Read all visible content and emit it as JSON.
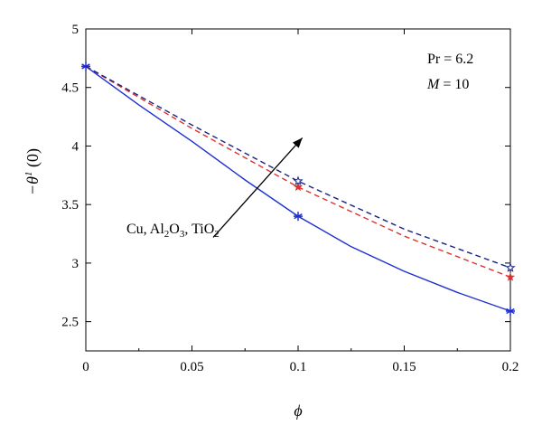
{
  "chart_data": {
    "type": "line",
    "xlabel": "ϕ",
    "ylabel": "−θ1(0)",
    "ylabel_parts": {
      "base": "−θ",
      "sup": "1",
      "tail": " (0)"
    },
    "xlim": [
      0,
      0.2
    ],
    "ylim": [
      2.25,
      5
    ],
    "x_ticks": [
      0,
      0.05,
      0.1,
      0.15,
      0.2
    ],
    "x_tick_labels": [
      "0",
      "0.05",
      "0.1",
      "0.15",
      "0.2"
    ],
    "y_ticks": [
      2.5,
      3,
      3.5,
      4,
      4.5,
      5
    ],
    "y_tick_labels": [
      "2.5",
      "3",
      "3.5",
      "4",
      "4.5",
      "5"
    ],
    "grid": false,
    "annotations": {
      "params": [
        {
          "var": "Pr",
          "value": "6.2",
          "italic": false
        },
        {
          "var": "M",
          "value": "10",
          "italic": true
        }
      ],
      "arrow_label_parts": [
        "Cu, Al",
        "2",
        "O",
        "3",
        ", TiO",
        "2"
      ],
      "arrow": {
        "from": [
          0.06,
          3.22
        ],
        "to": [
          0.102,
          4.07
        ]
      }
    },
    "series": [
      {
        "color": "#1f2fd0",
        "dash": "solid",
        "marker": "asterisk",
        "marker_x": [
          0,
          0.1,
          0.2
        ],
        "x": [
          0,
          0.025,
          0.05,
          0.075,
          0.1,
          0.125,
          0.15,
          0.175,
          0.2
        ],
        "values": [
          4.68,
          4.35,
          4.04,
          3.71,
          3.4,
          3.14,
          2.93,
          2.75,
          2.59
        ]
      },
      {
        "color": "#e03030",
        "dash": "dashed",
        "marker": "star",
        "marker_x": [
          0.1,
          0.2
        ],
        "x": [
          0,
          0.05,
          0.1,
          0.15,
          0.2
        ],
        "values": [
          4.68,
          4.15,
          3.65,
          3.23,
          2.88
        ]
      },
      {
        "color": "#1a237e",
        "dash": "dashed",
        "marker": "star-outline",
        "marker_x": [
          0.1,
          0.2
        ],
        "x": [
          0,
          0.05,
          0.1,
          0.15,
          0.2
        ],
        "values": [
          4.68,
          4.18,
          3.7,
          3.29,
          2.96
        ]
      }
    ]
  }
}
